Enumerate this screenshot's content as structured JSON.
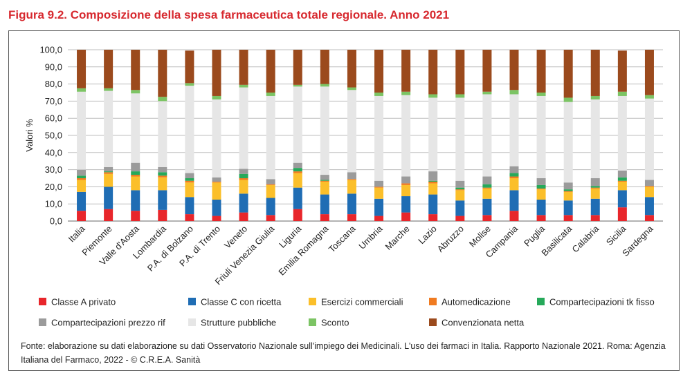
{
  "figure": {
    "title": "Figura 9.2. Composizione della spesa farmaceutica totale regionale. Anno 2021",
    "source": "Fonte: elaborazione su dati elaborazione su dati Osservatorio Nazionale sull'impiego dei Medicinali. L'uso dei farmaci in Italia. Rapporto Nazionale 2021. Roma: Agenzia Italiana del Farmaco, 2022 - © C.R.E.A. Sanità"
  },
  "chart_data": {
    "type": "bar",
    "stacked": true,
    "title": "",
    "xlabel": "",
    "ylabel": "Valori %",
    "ylim": [
      0,
      100
    ],
    "yticks": [
      "0,0",
      "10,0",
      "20,0",
      "30,0",
      "40,0",
      "50,0",
      "60,0",
      "70,0",
      "80,0",
      "90,0",
      "100,0"
    ],
    "grid": true,
    "legend_position": "bottom",
    "categories": [
      "Italia",
      "Piemonte",
      "Valle d'Aosta",
      "Lombardia",
      "P.A. di Bolzano",
      "P.A. di Trento",
      "Veneto",
      "Friuli Venezia Giulia",
      "Liguria",
      "Emilia Romagna",
      "Toscana",
      "Umbria",
      "Marche",
      "Lazio",
      "Abruzzo",
      "Molise",
      "Campania",
      "Puglia",
      "Basilicata",
      "Calabria",
      "Sicilia",
      "Sardegna"
    ],
    "series": [
      {
        "name": "Classe A privato",
        "color": "#e8262b",
        "values": [
          6,
          7,
          6,
          6.5,
          4,
          3,
          5,
          3.5,
          7,
          4,
          4,
          3,
          5,
          4,
          3,
          3.5,
          6,
          3.5,
          3.5,
          3.5,
          8,
          3.5
        ]
      },
      {
        "name": "Classe C con ricetta",
        "color": "#1f6db4",
        "values": [
          11,
          13,
          12,
          11.5,
          10,
          9.5,
          11,
          10,
          12.5,
          11.5,
          12,
          10,
          9.5,
          11.5,
          9,
          9.5,
          12,
          9,
          8.5,
          9.5,
          10,
          10.5
        ]
      },
      {
        "name": "Esercizi commerciali",
        "color": "#fbbf2a",
        "values": [
          7,
          7.5,
          8,
          7.5,
          8.5,
          10,
          8,
          7.5,
          8.5,
          7.5,
          8,
          6.5,
          6.5,
          6.5,
          6,
          6,
          7,
          6,
          5,
          6,
          5,
          6
        ]
      },
      {
        "name": "Automedicazione",
        "color": "#f07b21",
        "values": [
          1,
          1,
          1,
          1,
          1,
          0.5,
          1,
          0.5,
          1,
          0.5,
          0.5,
          0.5,
          1,
          1,
          0.5,
          0.5,
          1,
          0.5,
          0.5,
          0.5,
          0.5,
          0.5
        ]
      },
      {
        "name": "Compartecipazioni tk fisso",
        "color": "#26a95a",
        "values": [
          1.5,
          0.5,
          2,
          2,
          1.5,
          0,
          2.5,
          0,
          2,
          0.5,
          0,
          0,
          0,
          0.5,
          1,
          2,
          2,
          2,
          1,
          1,
          2,
          0
        ]
      },
      {
        "name": "Compartecipazioni prezzo rif",
        "color": "#9b9b9b",
        "values": [
          3.5,
          2.5,
          5,
          3,
          3,
          2.5,
          3,
          3,
          3,
          3,
          4,
          3.5,
          4,
          5.5,
          4,
          4.5,
          4,
          4,
          4,
          4.5,
          4,
          3.5
        ]
      },
      {
        "name": "Strutture pubbliche",
        "color": "#e6e6e6",
        "values": [
          45.5,
          44.5,
          40.5,
          38.5,
          51,
          45.5,
          47.5,
          48.5,
          44.5,
          51.5,
          48,
          49.5,
          47.5,
          43,
          48.5,
          48,
          42,
          48,
          47,
          46,
          43.5,
          47.5
        ]
      },
      {
        "name": "Sconto",
        "color": "#7cc464",
        "values": [
          2,
          1.5,
          2,
          2.5,
          1.5,
          2,
          1.5,
          2,
          1,
          1.5,
          1.5,
          2,
          2,
          2,
          2,
          1.5,
          2.5,
          2,
          2.5,
          2,
          2.5,
          2
        ]
      },
      {
        "name": "Convenzionata netta",
        "color": "#9b4a1d",
        "values": [
          22.5,
          22.5,
          23.5,
          27.5,
          19,
          27,
          20.5,
          25,
          20.5,
          20,
          22,
          25,
          24.5,
          26,
          26,
          24.5,
          23.5,
          25,
          28,
          27,
          24,
          26.5
        ]
      }
    ]
  }
}
